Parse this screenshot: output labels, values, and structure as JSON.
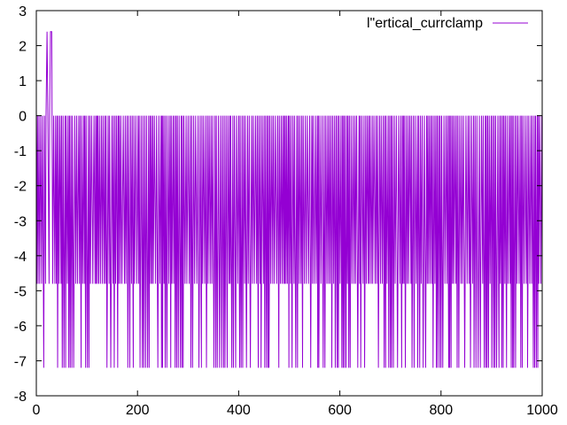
{
  "chart_data": {
    "type": "line",
    "title": "",
    "xlabel": "",
    "ylabel": "",
    "xlim": [
      0,
      1000
    ],
    "ylim": [
      -8,
      3
    ],
    "xticks": [
      0,
      200,
      400,
      600,
      800,
      1000
    ],
    "yticks": [
      -8,
      -7,
      -6,
      -5,
      -4,
      -3,
      -2,
      -1,
      0,
      1,
      2,
      3
    ],
    "grid": false,
    "legend_position": "top-right",
    "series": [
      {
        "name": "l\"ertical_currclamp",
        "color": "#9400d3",
        "levels": [
          0,
          -4.8,
          -7.2
        ],
        "spike_value": 2.4,
        "spike_x": [
          21,
          29
        ]
      }
    ]
  }
}
